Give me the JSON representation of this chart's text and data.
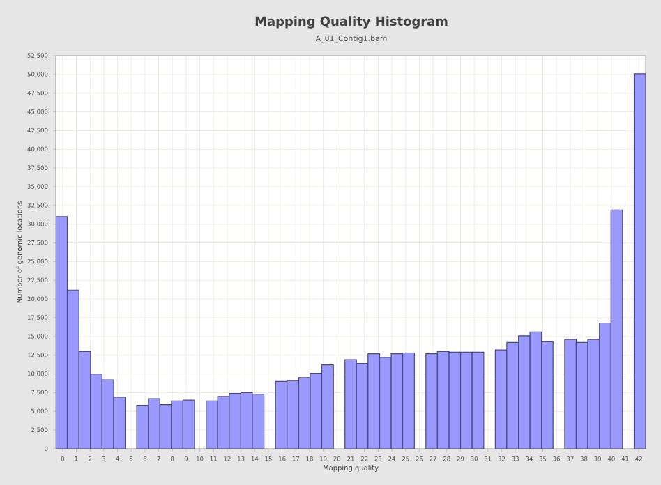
{
  "chart_data": {
    "type": "histogram",
    "title": "Mapping Quality Histogram",
    "subtitle": "A_01_Contig1.bam",
    "xlabel": "Mapping quality",
    "ylabel": "Number of genomic locations",
    "bins": [
      -0.5,
      0.34,
      1.19,
      2.03,
      2.87,
      3.72,
      4.56,
      5.4,
      6.25,
      7.09,
      7.93,
      8.77,
      9.62,
      10.46,
      11.3,
      12.15,
      12.99,
      13.83,
      14.68,
      15.52,
      16.36,
      17.21,
      18.05,
      18.89,
      19.74,
      20.58,
      21.42,
      22.26,
      23.11,
      23.95,
      24.79,
      25.64,
      26.48,
      27.32,
      28.17,
      29.01,
      29.85,
      30.7,
      31.54,
      32.38,
      33.23,
      34.07,
      34.91,
      35.75,
      36.6,
      37.44,
      38.28,
      39.13,
      39.97,
      40.81,
      41.66,
      42.5
    ],
    "values": [
      31000,
      21200,
      13000,
      10000,
      9200,
      6900,
      null,
      5800,
      6700,
      5900,
      6400,
      6500,
      null,
      6400,
      7000,
      7400,
      7500,
      7300,
      null,
      9000,
      9100,
      9500,
      10100,
      11200,
      null,
      11900,
      11400,
      12700,
      12200,
      12700,
      12800,
      null,
      12700,
      13000,
      12900,
      12900,
      12900,
      null,
      13200,
      14200,
      15100,
      15600,
      14300,
      null,
      14600,
      14200,
      14600,
      16800,
      31900,
      null,
      50100
    ],
    "color": "#9999ff",
    "xlim": [
      -0.5,
      42.5
    ],
    "xticks": [
      0,
      1,
      2,
      3,
      4,
      5,
      6,
      7,
      8,
      9,
      10,
      11,
      12,
      13,
      14,
      15,
      16,
      17,
      18,
      19,
      20,
      21,
      22,
      23,
      24,
      25,
      26,
      27,
      28,
      29,
      30,
      31,
      32,
      33,
      34,
      35,
      36,
      37,
      38,
      39,
      40,
      41,
      42
    ],
    "ylim": [
      0,
      52500
    ],
    "yticks": [
      {
        "value": 0,
        "label": "0"
      },
      {
        "value": 2500,
        "label": "2,500"
      },
      {
        "value": 5000,
        "label": "5,000"
      },
      {
        "value": 7500,
        "label": "7,500"
      },
      {
        "value": 10000,
        "label": "10,000"
      },
      {
        "value": 12500,
        "label": "12,500"
      },
      {
        "value": 15000,
        "label": "15,000"
      },
      {
        "value": 17500,
        "label": "17,500"
      },
      {
        "value": 20000,
        "label": "20,000"
      },
      {
        "value": 22500,
        "label": "22,500"
      },
      {
        "value": 25000,
        "label": "25,000"
      },
      {
        "value": 27500,
        "label": "27,500"
      },
      {
        "value": 30000,
        "label": "30,000"
      },
      {
        "value": 32500,
        "label": "32,500"
      },
      {
        "value": 35000,
        "label": "35,000"
      },
      {
        "value": 37500,
        "label": "37,500"
      },
      {
        "value": 40000,
        "label": "40,000"
      },
      {
        "value": 42500,
        "label": "42,500"
      },
      {
        "value": 45000,
        "label": "45,000"
      },
      {
        "value": 47500,
        "label": "47,500"
      },
      {
        "value": 50000,
        "label": "50,000"
      },
      {
        "value": 52500,
        "label": "52,500"
      }
    ],
    "grid": true
  }
}
